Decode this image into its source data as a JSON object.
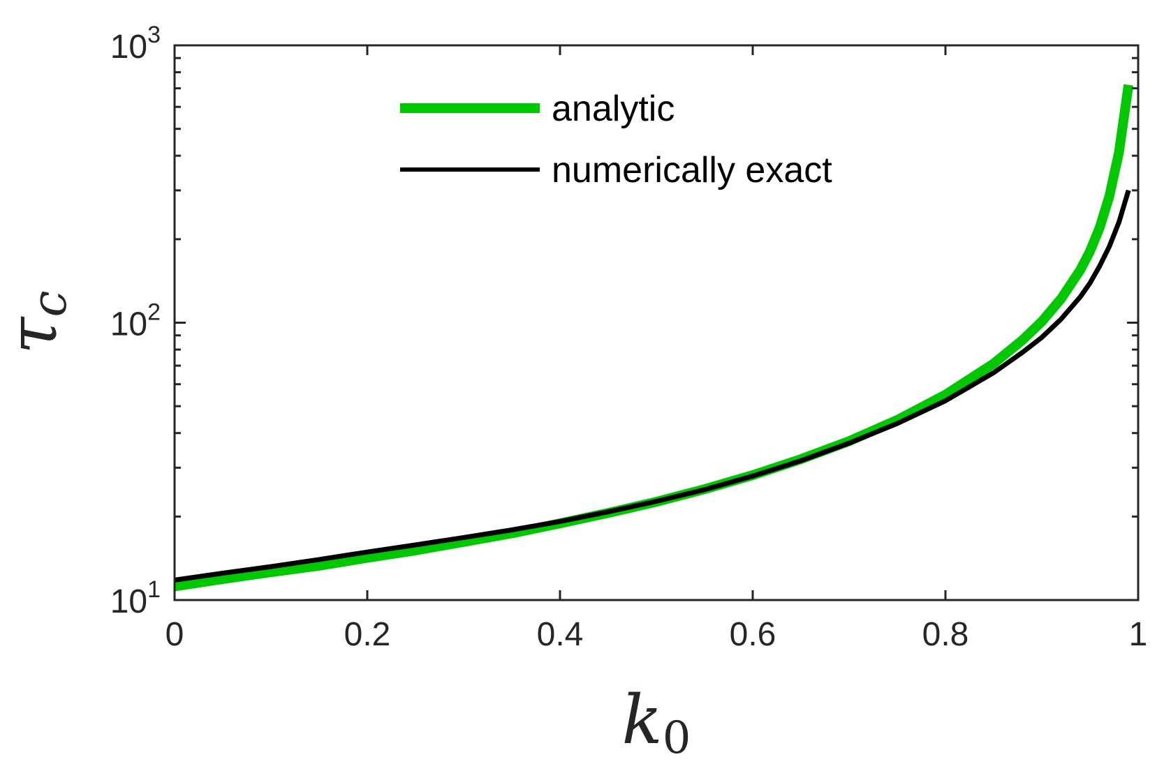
{
  "chart_data": {
    "type": "line",
    "xlabel": "k",
    "xlabel_sub": "0",
    "ylabel": "τ",
    "ylabel_sub": "c",
    "xlim": [
      0,
      1
    ],
    "ylim": [
      10,
      1000
    ],
    "yscale": "log",
    "grid": false,
    "legend_position": "top",
    "x_ticks": [
      {
        "value": 0,
        "label": "0"
      },
      {
        "value": 0.2,
        "label": "0.2"
      },
      {
        "value": 0.4,
        "label": "0.4"
      },
      {
        "value": 0.6,
        "label": "0.6"
      },
      {
        "value": 0.8,
        "label": "0.8"
      },
      {
        "value": 1,
        "label": "1"
      }
    ],
    "y_ticks": [
      {
        "value": 10,
        "base": "10",
        "exp": "1"
      },
      {
        "value": 100,
        "base": "10",
        "exp": "2"
      },
      {
        "value": 1000,
        "base": "10",
        "exp": "3"
      }
    ],
    "series": [
      {
        "name": "analytic",
        "color": "#00c800",
        "x": [
          0,
          0.05,
          0.1,
          0.15,
          0.2,
          0.25,
          0.3,
          0.35,
          0.4,
          0.45,
          0.5,
          0.55,
          0.6,
          0.65,
          0.7,
          0.75,
          0.8,
          0.85,
          0.88,
          0.9,
          0.92,
          0.94,
          0.95,
          0.96,
          0.97,
          0.98,
          0.99
        ],
        "y": [
          11.2,
          11.9,
          12.6,
          13.3,
          14.2,
          15.1,
          16.2,
          17.4,
          18.9,
          20.6,
          22.6,
          25.1,
          28.2,
          32.2,
          37.4,
          44.6,
          55.0,
          71.2,
          86.6,
          101,
          122,
          155,
          181,
          220,
          285,
          410,
          720
        ]
      },
      {
        "name": "numerically exact",
        "color": "#000000",
        "x": [
          0,
          0.05,
          0.1,
          0.15,
          0.2,
          0.25,
          0.3,
          0.35,
          0.4,
          0.45,
          0.5,
          0.55,
          0.6,
          0.65,
          0.7,
          0.75,
          0.8,
          0.85,
          0.88,
          0.9,
          0.92,
          0.94,
          0.95,
          0.96,
          0.97,
          0.98,
          0.99
        ],
        "y": [
          11.8,
          12.5,
          13.2,
          14.0,
          14.9,
          15.8,
          16.8,
          17.9,
          19.2,
          20.8,
          22.7,
          25.0,
          28.0,
          31.8,
          36.8,
          43.3,
          52.3,
          66.0,
          78.2,
          88.5,
          103,
          124,
          139,
          160,
          188,
          230,
          300
        ]
      }
    ]
  }
}
